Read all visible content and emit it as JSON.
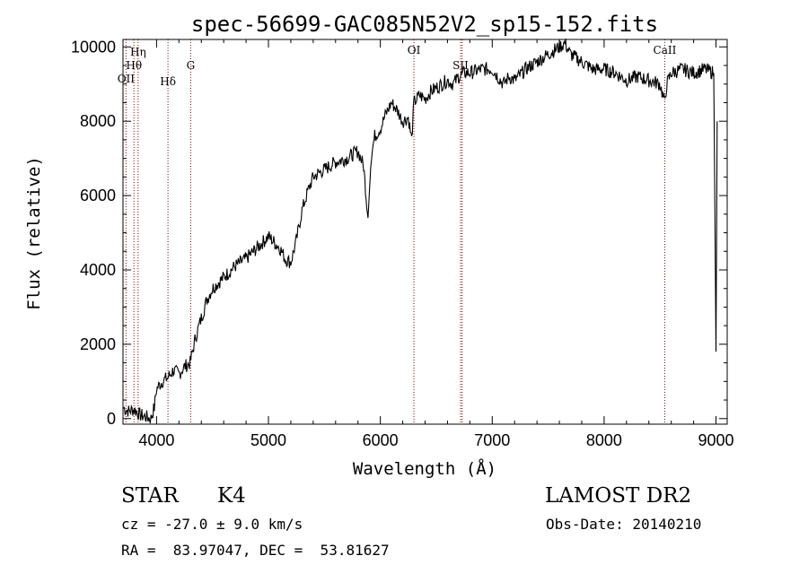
{
  "chart_data": {
    "type": "line",
    "title": "spec-56699-GAC085N52V2_sp15-152.fits",
    "xlabel": "Wavelength (Å)",
    "ylabel": "Flux (relative)",
    "xlim": [
      3700,
      9100
    ],
    "ylim": [
      -150,
      10200
    ],
    "xticks": [
      4000,
      5000,
      6000,
      7000,
      8000,
      9000
    ],
    "yticks": [
      0,
      2000,
      4000,
      6000,
      8000,
      10000
    ],
    "grid": false,
    "line_color": "#000000",
    "marker_color": "#8b0000",
    "spectral_lines": [
      {
        "name": "OII",
        "wavelength": 3727
      },
      {
        "name": "Hθ",
        "wavelength": 3798
      },
      {
        "name": "Hη",
        "wavelength": 3835
      },
      {
        "name": "Hδ",
        "wavelength": 4102
      },
      {
        "name": "G",
        "wavelength": 4305
      },
      {
        "name": "OI",
        "wavelength": 6300
      },
      {
        "name": "SII",
        "wavelength": 6717
      },
      {
        "name": "SII",
        "wavelength": 6731
      },
      {
        "name": "CaII",
        "wavelength": 8542
      }
    ],
    "series": [
      {
        "values_note_free": true,
        "x": [
          3700,
          3750,
          3800,
          3850,
          3900,
          3950,
          3980,
          4000,
          4050,
          4100,
          4150,
          4200,
          4250,
          4300,
          4350,
          4400,
          4450,
          4500,
          4600,
          4700,
          4800,
          4900,
          5000,
          5100,
          5150,
          5200,
          5250,
          5300,
          5350,
          5400,
          5500,
          5600,
          5700,
          5800,
          5850,
          5890,
          5920,
          5950,
          6000,
          6050,
          6100,
          6150,
          6200,
          6250,
          6280,
          6300,
          6350,
          6400,
          6450,
          6500,
          6550,
          6600,
          6650,
          6700,
          6750,
          6800,
          6900,
          7000,
          7100,
          7150,
          7200,
          7300,
          7400,
          7500,
          7600,
          7650,
          7700,
          7800,
          7900,
          8000,
          8100,
          8200,
          8300,
          8400,
          8500,
          8540,
          8560,
          8600,
          8700,
          8800,
          8900,
          8980,
          9000,
          9010
        ],
        "y": [
          300,
          200,
          250,
          100,
          50,
          0,
          300,
          800,
          1000,
          1100,
          1300,
          1200,
          1400,
          1500,
          2200,
          2700,
          3200,
          3500,
          3800,
          4100,
          4300,
          4600,
          4900,
          4600,
          4300,
          4200,
          4800,
          5600,
          6100,
          6500,
          6700,
          6900,
          7000,
          7200,
          6800,
          5400,
          7100,
          7600,
          7800,
          8200,
          8500,
          8300,
          8000,
          8100,
          7500,
          8500,
          8700,
          8600,
          8800,
          8900,
          9000,
          9100,
          9000,
          9200,
          9300,
          9300,
          9400,
          9400,
          9000,
          9200,
          9100,
          9400,
          9600,
          9800,
          10000,
          10100,
          9800,
          9600,
          9400,
          9400,
          9300,
          9100,
          9200,
          9100,
          9000,
          8500,
          9000,
          9300,
          9400,
          9300,
          9400,
          9300,
          1800,
          8000
        ]
      }
    ]
  },
  "info": {
    "object_class": "STAR",
    "subclass": "K4",
    "survey": "LAMOST DR2",
    "velocity": "cz = -27.0 ± 9.0 km/s",
    "obs_date": "Obs-Date: 20140210",
    "coords": "RA =  83.97047, DEC =  53.81627"
  }
}
